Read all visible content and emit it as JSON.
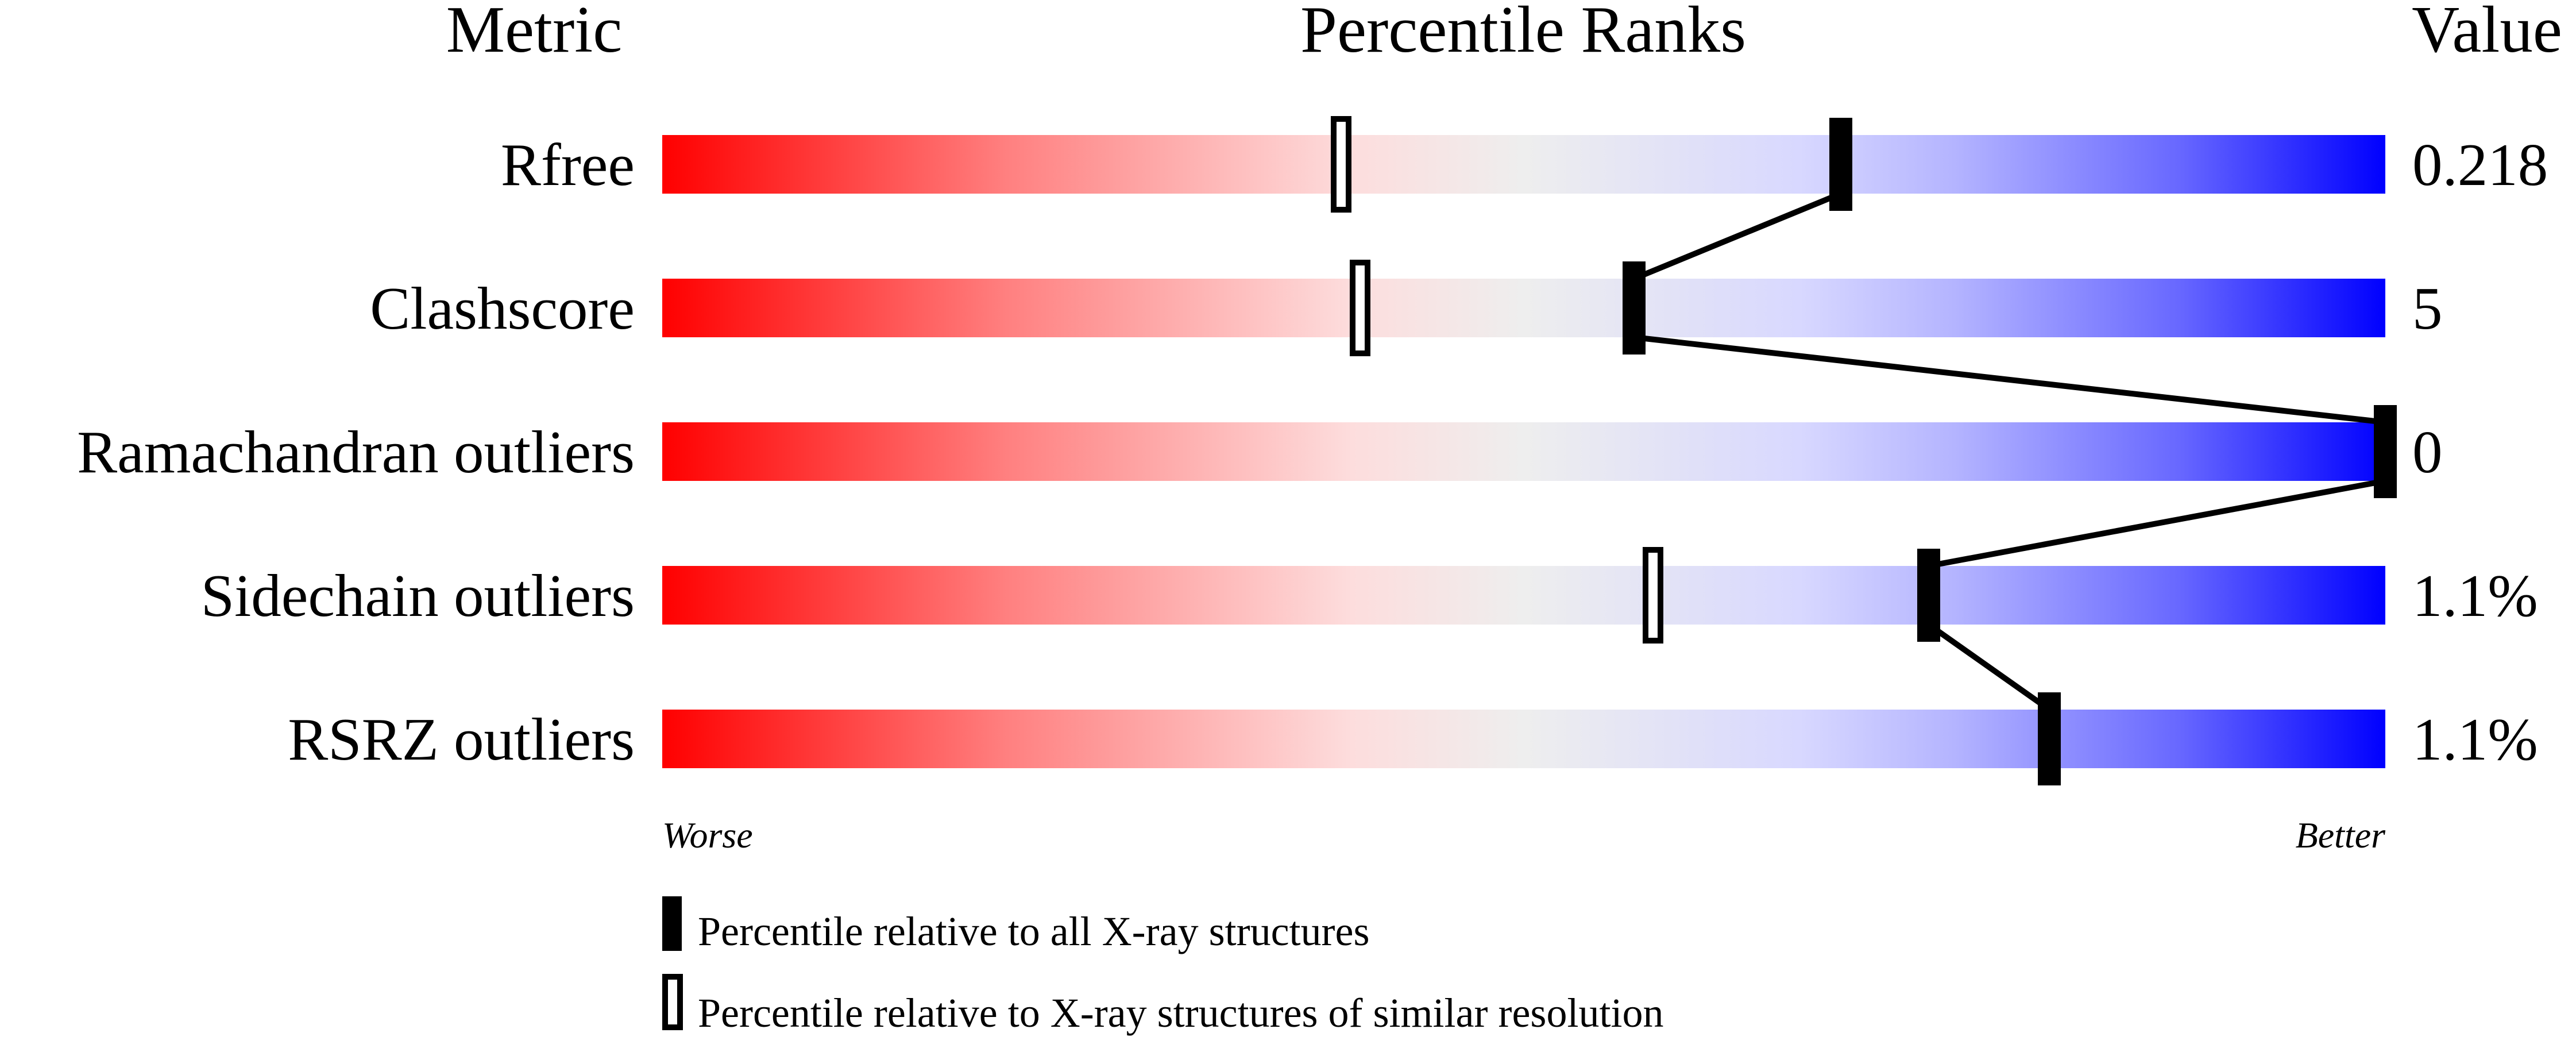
{
  "chart_data": {
    "type": "percentile-slider",
    "headers": {
      "metric": "Metric",
      "ranks": "Percentile Ranks",
      "value": "Value"
    },
    "xlim": [
      0,
      100
    ],
    "rows": [
      {
        "metric": "Rfree",
        "value": "0.218",
        "percentile_all": 68.4,
        "percentile_similar": 39.4
      },
      {
        "metric": "Clashscore",
        "value": "5",
        "percentile_all": 56.4,
        "percentile_similar": 40.5
      },
      {
        "metric": "Ramachandran outliers",
        "value": "0",
        "percentile_all": 100,
        "percentile_similar": null
      },
      {
        "metric": "Sidechain outliers",
        "value": "1.1%",
        "percentile_all": 73.5,
        "percentile_similar": 57.5
      },
      {
        "metric": "RSRZ outliers",
        "value": "1.1%",
        "percentile_all": 80.5,
        "percentile_similar": null
      }
    ],
    "axis": {
      "left_label": "Worse",
      "right_label": "Better"
    },
    "legend": [
      {
        "marker": "filled",
        "label": "Percentile relative to all X-ray structures"
      },
      {
        "marker": "open",
        "label": "Percentile relative to X-ray structures of similar resolution"
      }
    ],
    "colors": {
      "worse": "#ff0000",
      "middle": "#eeeeee",
      "better": "#0000ff",
      "marker": "#000000"
    }
  }
}
